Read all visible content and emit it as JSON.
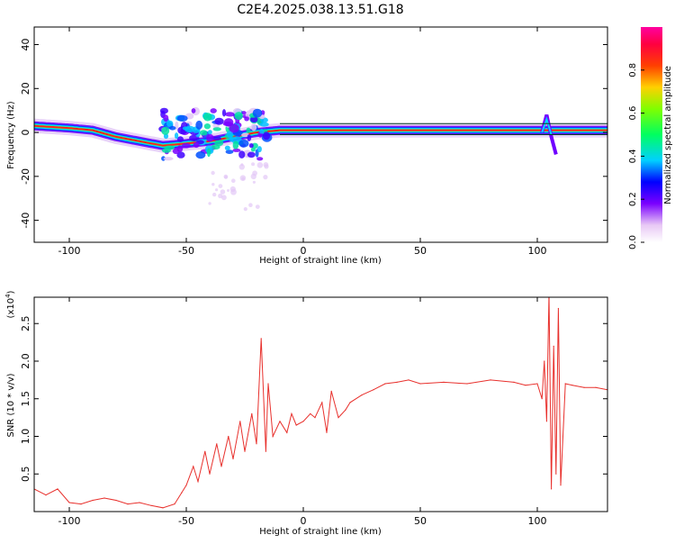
{
  "title": "C2E4.2025.038.13.51.G18",
  "chart_data": [
    {
      "type": "heatmap",
      "xlabel": "Height of straight line (km)",
      "ylabel": "Frequency (Hz)",
      "xlim": [
        -115,
        130
      ],
      "ylim": [
        -50,
        48
      ],
      "xticks": [
        -100,
        -50,
        0,
        50,
        100
      ],
      "yticks": [
        -40,
        -20,
        0,
        20,
        40
      ],
      "colorbar": {
        "label": "Normalized spectral amplitude",
        "range": [
          0,
          1
        ],
        "ticks": [
          0.0,
          0.2,
          0.4,
          0.6,
          0.8
        ],
        "tick_labels": [
          "0.0",
          "0.2",
          "0.4",
          "0.6",
          "0.8"
        ]
      },
      "ridge": [
        {
          "x": -115,
          "f": 3
        },
        {
          "x": -100,
          "f": 2
        },
        {
          "x": -90,
          "f": 1
        },
        {
          "x": -80,
          "f": -2
        },
        {
          "x": -70,
          "f": -4
        },
        {
          "x": -60,
          "f": -6
        },
        {
          "x": -50,
          "f": -5
        },
        {
          "x": -40,
          "f": -4
        },
        {
          "x": -30,
          "f": -2
        },
        {
          "x": -20,
          "f": 0
        },
        {
          "x": -10,
          "f": 1
        },
        {
          "x": 0,
          "f": 1
        },
        {
          "x": 10,
          "f": 1
        },
        {
          "x": 50,
          "f": 1
        },
        {
          "x": 100,
          "f": 1
        },
        {
          "x": 130,
          "f": 1
        }
      ]
    },
    {
      "type": "line",
      "xlabel": "Height of straight line (km)",
      "ylabel": "SNR (10 * v/v)",
      "multiplier": "(x10",
      "multiplier_exp": "4",
      "multiplier_close": ")",
      "xlim": [
        -115,
        130
      ],
      "ylim": [
        0,
        2.85
      ],
      "xticks": [
        -100,
        -50,
        0,
        50,
        100
      ],
      "yticks": [
        0.5,
        1.0,
        1.5,
        2.0,
        2.5
      ],
      "ytick_labels": [
        "0.5",
        "1.0",
        "1.5",
        "2.0",
        "2.5"
      ],
      "series": [
        {
          "color": "#e8302c",
          "x": [
            -115,
            -110,
            -105,
            -100,
            -95,
            -90,
            -85,
            -80,
            -75,
            -70,
            -65,
            -60,
            -55,
            -52,
            -50,
            -47,
            -45,
            -42,
            -40,
            -37,
            -35,
            -32,
            -30,
            -27,
            -25,
            -22,
            -20,
            -18,
            -16,
            -15,
            -13,
            -10,
            -7,
            -5,
            -3,
            0,
            3,
            5,
            8,
            10,
            12,
            15,
            18,
            20,
            25,
            30,
            35,
            40,
            45,
            50,
            60,
            70,
            80,
            90,
            95,
            100,
            102,
            103,
            104,
            105,
            106,
            107,
            108,
            109,
            110,
            112,
            115,
            120,
            125,
            130
          ],
          "y": [
            0.3,
            0.22,
            0.3,
            0.12,
            0.1,
            0.15,
            0.18,
            0.15,
            0.1,
            0.12,
            0.08,
            0.05,
            0.1,
            0.25,
            0.35,
            0.6,
            0.4,
            0.8,
            0.5,
            0.9,
            0.6,
            1.0,
            0.7,
            1.2,
            0.8,
            1.3,
            0.9,
            2.3,
            0.8,
            1.7,
            1.0,
            1.2,
            1.05,
            1.3,
            1.15,
            1.2,
            1.3,
            1.25,
            1.45,
            1.05,
            1.6,
            1.25,
            1.35,
            1.45,
            1.55,
            1.62,
            1.7,
            1.72,
            1.75,
            1.7,
            1.72,
            1.7,
            1.75,
            1.72,
            1.68,
            1.7,
            1.5,
            2.0,
            1.2,
            2.9,
            0.3,
            2.2,
            0.5,
            2.7,
            0.35,
            1.7,
            1.68,
            1.65,
            1.65,
            1.62
          ]
        }
      ]
    }
  ]
}
